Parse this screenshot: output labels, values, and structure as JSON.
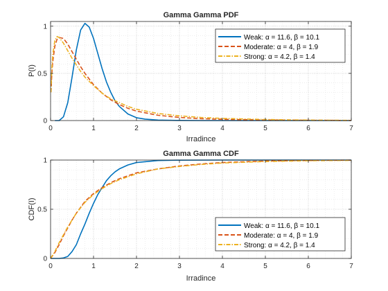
{
  "colors": {
    "weak": "#0072BD",
    "moderate": "#D95319",
    "strong": "#EDB120",
    "axis": "#262626",
    "grid_major": "#c8c8c8",
    "grid_minor": "#e2e2e2"
  },
  "chart_data": [
    {
      "type": "line",
      "title": "Gamma Gamma PDF",
      "xlabel": "Irradince",
      "ylabel": "P(I)",
      "xlim": [
        0,
        7
      ],
      "ylim": [
        0,
        1.05
      ],
      "xticks": [
        "0",
        "1",
        "2",
        "3",
        "4",
        "5",
        "6",
        "7"
      ],
      "yticks": [
        "0",
        "0.5",
        "1"
      ],
      "grid": "minor",
      "legend_position": "top-right",
      "series": [
        {
          "name": "Weak: α = 11.6, β = 10.1",
          "color": "weak",
          "style": "solid",
          "x": [
            0.1,
            0.2,
            0.3,
            0.4,
            0.5,
            0.6,
            0.7,
            0.8,
            0.9,
            1.0,
            1.1,
            1.2,
            1.3,
            1.4,
            1.5,
            1.6,
            1.8,
            2.0,
            2.2,
            2.5,
            3.0,
            3.5,
            4.0,
            5.0,
            6.0,
            7.0
          ],
          "y": [
            0.0,
            0.0,
            0.04,
            0.19,
            0.46,
            0.75,
            0.96,
            1.03,
            0.99,
            0.87,
            0.71,
            0.55,
            0.41,
            0.3,
            0.21,
            0.15,
            0.07,
            0.03,
            0.015,
            0.005,
            0.001,
            0.0,
            0.0,
            0.0,
            0.0,
            0.0
          ]
        },
        {
          "name": "Moderate: α = 4, β = 1.9",
          "color": "moderate",
          "style": "dashed",
          "x": [
            0.01,
            0.03,
            0.05,
            0.1,
            0.15,
            0.2,
            0.3,
            0.4,
            0.5,
            0.6,
            0.7,
            0.8,
            1.0,
            1.2,
            1.4,
            1.6,
            1.8,
            2.0,
            2.5,
            3.0,
            3.5,
            4.0,
            5.0,
            6.0,
            7.0
          ],
          "y": [
            0.3,
            0.5,
            0.62,
            0.79,
            0.86,
            0.88,
            0.87,
            0.81,
            0.73,
            0.65,
            0.57,
            0.5,
            0.38,
            0.29,
            0.22,
            0.17,
            0.13,
            0.1,
            0.056,
            0.033,
            0.02,
            0.013,
            0.006,
            0.003,
            0.001
          ]
        },
        {
          "name": "Strong: α = 4.2, β = 1.4",
          "color": "strong",
          "style": "dashdot",
          "x": [
            0.01,
            0.03,
            0.05,
            0.1,
            0.15,
            0.2,
            0.3,
            0.4,
            0.5,
            0.6,
            0.7,
            0.8,
            1.0,
            1.2,
            1.4,
            1.6,
            1.8,
            2.0,
            2.5,
            3.0,
            3.5,
            4.0,
            5.0,
            6.0,
            7.0
          ],
          "y": [
            0.3,
            0.55,
            0.7,
            0.85,
            0.89,
            0.88,
            0.82,
            0.74,
            0.66,
            0.59,
            0.52,
            0.46,
            0.37,
            0.29,
            0.23,
            0.19,
            0.15,
            0.12,
            0.075,
            0.05,
            0.033,
            0.023,
            0.011,
            0.005,
            0.002
          ]
        }
      ]
    },
    {
      "type": "line",
      "title": "Gamma Gamma CDF",
      "xlabel": "Irradince",
      "ylabel": "CDF(I)",
      "xlim": [
        0,
        7
      ],
      "ylim": [
        0,
        1
      ],
      "xticks": [
        "0",
        "1",
        "2",
        "3",
        "4",
        "5",
        "6",
        "7"
      ],
      "yticks": [
        "0",
        "0.5",
        "1"
      ],
      "grid": "minor",
      "legend_position": "bottom-right",
      "series": [
        {
          "name": "Weak: α = 11.6, β = 10.1",
          "color": "weak",
          "style": "solid",
          "x": [
            0.0,
            0.2,
            0.3,
            0.4,
            0.5,
            0.6,
            0.7,
            0.8,
            0.9,
            1.0,
            1.1,
            1.2,
            1.3,
            1.4,
            1.5,
            1.6,
            1.8,
            2.0,
            2.5,
            3.0,
            4.0,
            5.0,
            6.0,
            7.0
          ],
          "y": [
            0.0,
            0.0,
            0.005,
            0.02,
            0.07,
            0.14,
            0.25,
            0.35,
            0.46,
            0.56,
            0.65,
            0.72,
            0.79,
            0.84,
            0.88,
            0.91,
            0.95,
            0.975,
            0.995,
            0.999,
            1.0,
            1.0,
            1.0,
            1.0
          ]
        },
        {
          "name": "Moderate: α = 4, β = 1.9",
          "color": "moderate",
          "style": "dashed",
          "x": [
            0.0,
            0.1,
            0.2,
            0.3,
            0.4,
            0.5,
            0.6,
            0.8,
            1.0,
            1.2,
            1.4,
            1.6,
            1.8,
            2.0,
            2.5,
            3.0,
            3.5,
            4.0,
            5.0,
            6.0,
            7.0
          ],
          "y": [
            0.0,
            0.06,
            0.14,
            0.23,
            0.31,
            0.39,
            0.46,
            0.58,
            0.66,
            0.72,
            0.77,
            0.81,
            0.84,
            0.87,
            0.91,
            0.94,
            0.96,
            0.975,
            0.99,
            0.996,
            0.999
          ]
        },
        {
          "name": "Strong: α = 4.2, β = 1.4",
          "color": "strong",
          "style": "dashdot",
          "x": [
            0.0,
            0.1,
            0.2,
            0.3,
            0.4,
            0.5,
            0.6,
            0.8,
            1.0,
            1.2,
            1.4,
            1.6,
            1.8,
            2.0,
            2.5,
            3.0,
            3.5,
            4.0,
            5.0,
            6.0,
            7.0
          ],
          "y": [
            0.0,
            0.07,
            0.16,
            0.24,
            0.32,
            0.39,
            0.46,
            0.57,
            0.65,
            0.71,
            0.76,
            0.8,
            0.83,
            0.86,
            0.91,
            0.935,
            0.955,
            0.97,
            0.985,
            0.993,
            0.997
          ]
        }
      ]
    }
  ]
}
